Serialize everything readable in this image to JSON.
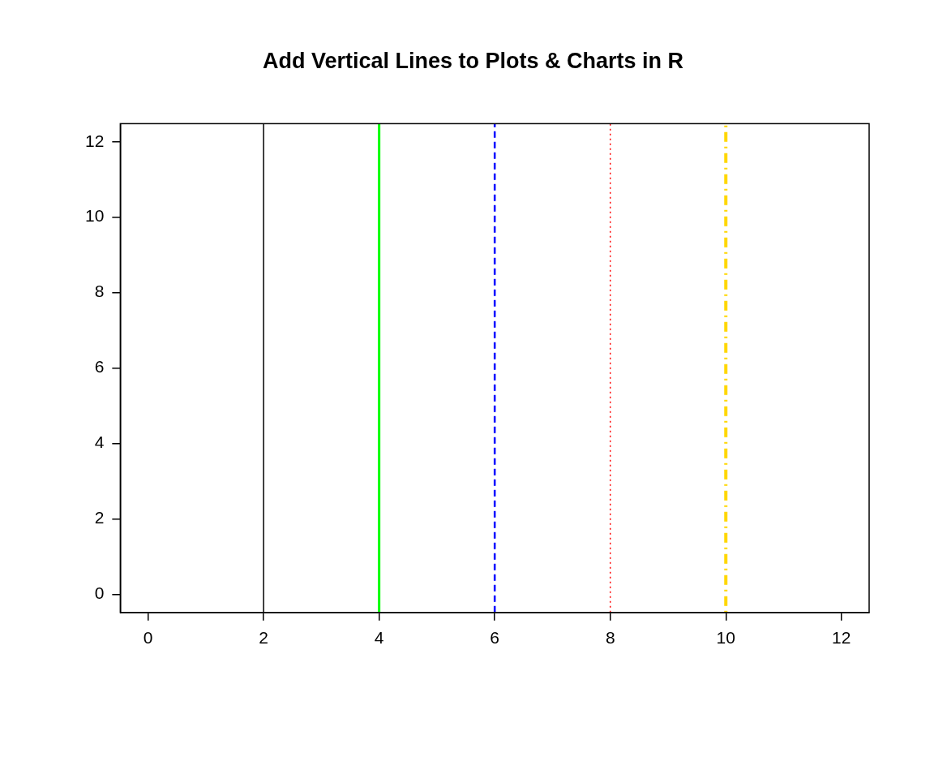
{
  "chart_data": {
    "type": "line",
    "title": "Add Vertical Lines to Plots & Charts in R",
    "xlim": [
      -0.48,
      12.48
    ],
    "xticks": [
      0,
      2,
      4,
      6,
      8,
      10,
      12
    ],
    "ylim": [
      -0.48,
      12.48
    ],
    "yticks": [
      0,
      2,
      4,
      6,
      8,
      10,
      12
    ],
    "grid": false,
    "series": [
      {
        "color": "#000000",
        "line_style": "solid",
        "x": [
          2,
          2
        ],
        "values": [
          -0.48,
          12.48
        ]
      },
      {
        "color": "#00FF00",
        "line_style": "solid",
        "x": [
          4,
          4
        ],
        "values": [
          -0.48,
          12.48
        ]
      },
      {
        "color": "#0000FF",
        "line_style": "dashed",
        "x": [
          6,
          6
        ],
        "values": [
          -0.48,
          12.48
        ]
      },
      {
        "color": "#FF0000",
        "line_style": "dotted",
        "x": [
          8,
          8
        ],
        "values": [
          -0.48,
          12.48
        ]
      },
      {
        "color": "#FFD700",
        "line_style": "dotdash",
        "x": [
          10,
          10
        ],
        "values": [
          -0.48,
          12.48
        ]
      }
    ]
  }
}
